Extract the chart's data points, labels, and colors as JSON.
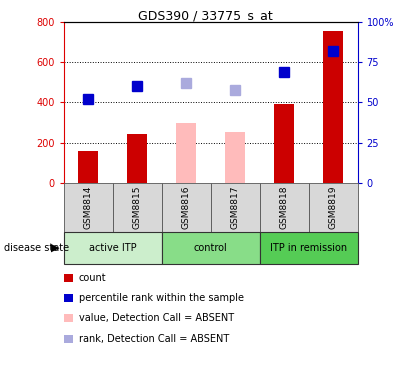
{
  "title": "GDS390 / 33775_s_at",
  "samples": [
    "GSM8814",
    "GSM8815",
    "GSM8816",
    "GSM8817",
    "GSM8818",
    "GSM8819"
  ],
  "bar_values": [
    160,
    245,
    300,
    255,
    390,
    755
  ],
  "bar_colors": [
    "#cc0000",
    "#cc0000",
    "#ffbbbb",
    "#ffbbbb",
    "#cc0000",
    "#cc0000"
  ],
  "rank_values": [
    52,
    60,
    62,
    58,
    69,
    82
  ],
  "rank_colors": [
    "#0000cc",
    "#0000cc",
    "#aaaadd",
    "#aaaadd",
    "#0000cc",
    "#0000cc"
  ],
  "groups": [
    {
      "label": "active ITP",
      "start": 0,
      "end": 2,
      "color": "#cceecc"
    },
    {
      "label": "control",
      "start": 2,
      "end": 4,
      "color": "#88dd88"
    },
    {
      "label": "ITP in remission",
      "start": 4,
      "end": 6,
      "color": "#55cc55"
    }
  ],
  "ylim_left": [
    0,
    800
  ],
  "ylim_right": [
    0,
    100
  ],
  "yticks_left": [
    0,
    200,
    400,
    600,
    800
  ],
  "yticks_right": [
    0,
    25,
    50,
    75,
    100
  ],
  "ytick_labels_right": [
    "0",
    "25",
    "50",
    "75",
    "100%"
  ],
  "grid_values": [
    200,
    400,
    600
  ],
  "left_axis_color": "#dd0000",
  "right_axis_color": "#0000cc",
  "bar_width": 0.4,
  "marker_size": 7,
  "legend_items": [
    {
      "label": "count",
      "color": "#cc0000"
    },
    {
      "label": "percentile rank within the sample",
      "color": "#0000cc"
    },
    {
      "label": "value, Detection Call = ABSENT",
      "color": "#ffbbbb"
    },
    {
      "label": "rank, Detection Call = ABSENT",
      "color": "#aaaadd"
    }
  ],
  "disease_state_label": "disease state",
  "sample_bg_color": "#d8d8d8"
}
